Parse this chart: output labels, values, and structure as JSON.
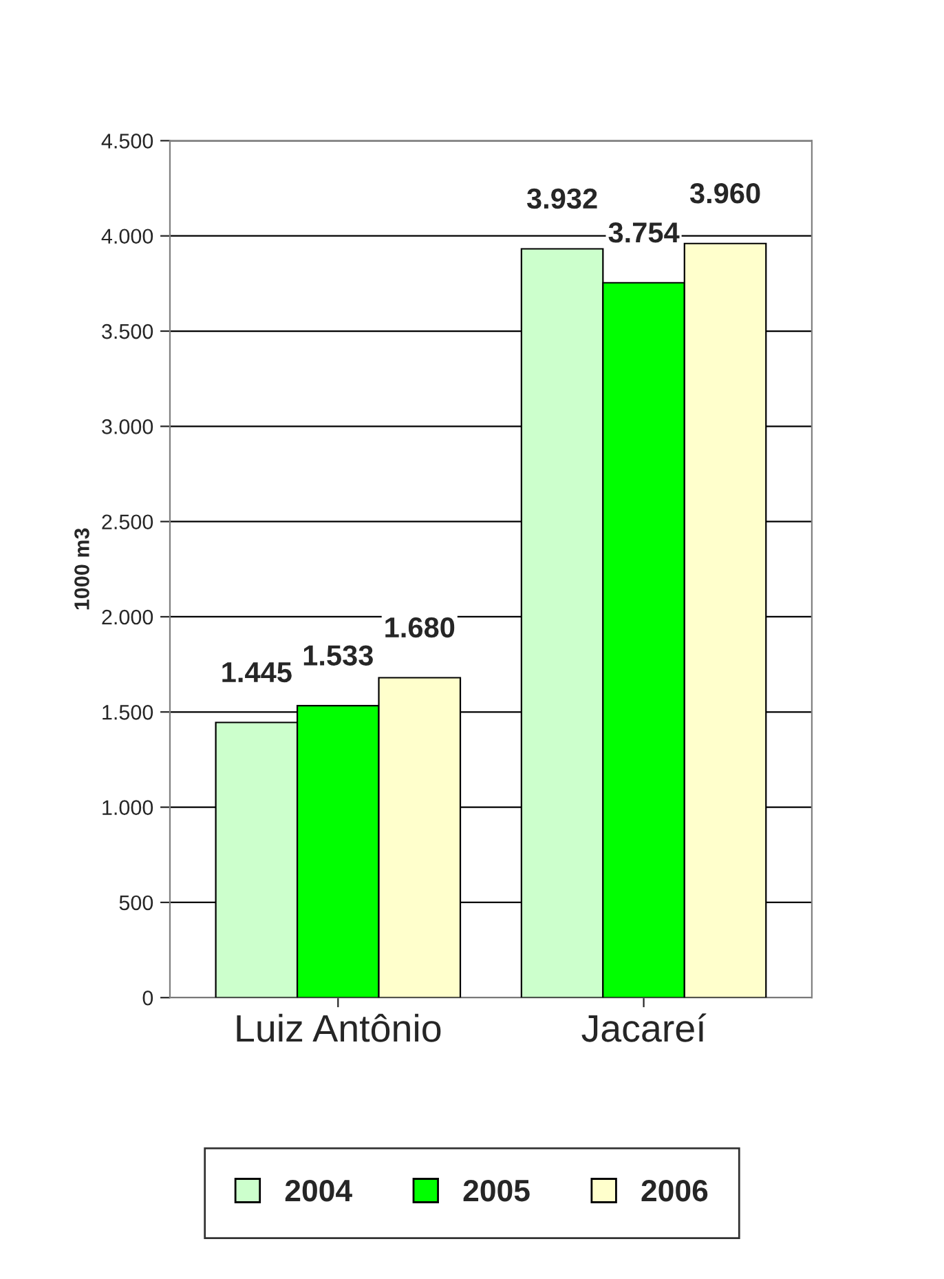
{
  "chart_data": {
    "type": "bar",
    "ylabel": "1000 m3",
    "categories": [
      "Luiz Antônio",
      "Jacareí"
    ],
    "series": [
      {
        "name": "2004",
        "color": "#ccffcc",
        "values": [
          1445,
          3932
        ],
        "value_labels": [
          "1.445",
          "3.932"
        ]
      },
      {
        "name": "2005",
        "color": "#00ff00",
        "values": [
          1533,
          3754
        ],
        "value_labels": [
          "1.533",
          "3.754"
        ]
      },
      {
        "name": "2006",
        "color": "#ffffcc",
        "values": [
          1680,
          3960
        ],
        "value_labels": [
          "1.680",
          "3.960"
        ]
      }
    ],
    "ylim": [
      0,
      4500
    ],
    "yticks": [
      0,
      500,
      {
        "value": 1000,
        "label": "1.000"
      },
      {
        "value": 1500,
        "label": "1.500"
      },
      {
        "value": 2000,
        "label": "2.000"
      },
      {
        "value": 2500,
        "label": "2.500"
      },
      {
        "value": 3000,
        "label": "3.000"
      },
      {
        "value": 3500,
        "label": "3.500"
      },
      {
        "value": 4000,
        "label": "4.000"
      },
      {
        "value": 4500,
        "label": "4.500"
      }
    ],
    "grid": "y",
    "legend": "bottom"
  }
}
